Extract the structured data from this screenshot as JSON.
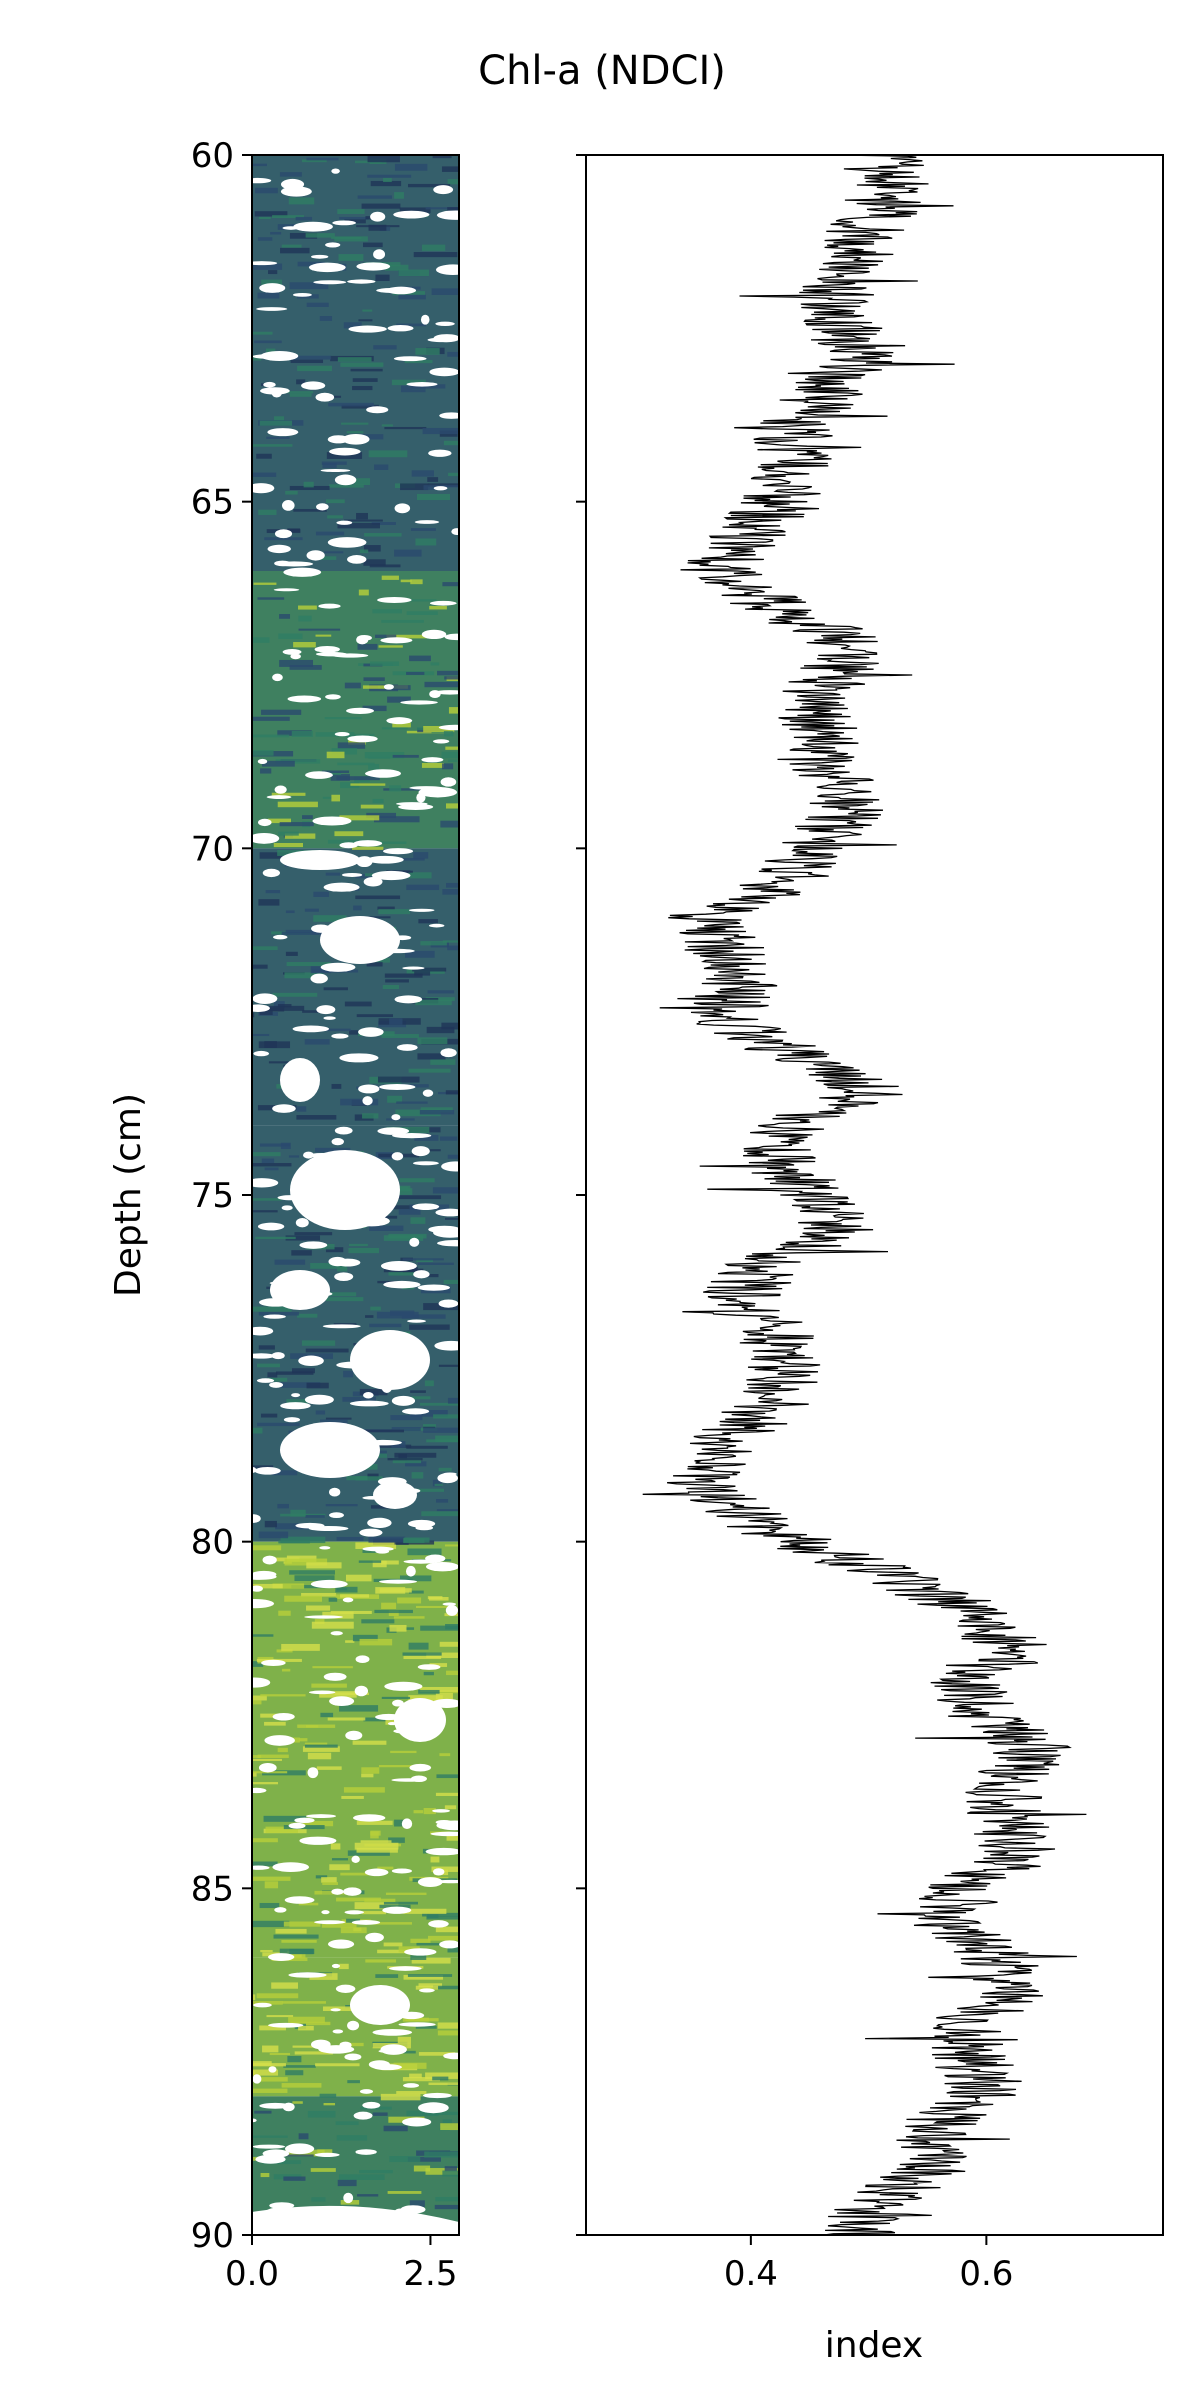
{
  "title": "Chl-a (NDCI)",
  "colors": {
    "background": "#ffffff",
    "profile_line": "#000000",
    "core_dark": "#2a4a6e",
    "core_mid": "#2f7d64",
    "core_light": "#b8cf3a",
    "core_void": "#ffffff"
  },
  "chart_data": [
    {
      "type": "heatmap",
      "panel": "left",
      "description_series": "core image colored by NDCI (viridis-like)",
      "xlabel": "",
      "ylabel": "Depth (cm)",
      "xlim": [
        0,
        2.9
      ],
      "ylim": [
        90,
        60
      ],
      "y_inverted": true,
      "x_ticks": [
        0.0,
        2.5
      ],
      "x_tick_labels": [
        "0.0",
        "2.5"
      ],
      "y_ticks": [
        60,
        65,
        70,
        75,
        80,
        85,
        90
      ],
      "y_tick_labels": [
        "60",
        "65",
        "70",
        "75",
        "80",
        "85",
        "90"
      ],
      "grid": false,
      "bands": [
        {
          "from": 60,
          "to": 66,
          "tone": "dark"
        },
        {
          "from": 66,
          "to": 70,
          "tone": "mid"
        },
        {
          "from": 70,
          "to": 74,
          "tone": "dark"
        },
        {
          "from": 74,
          "to": 80,
          "tone": "dark"
        },
        {
          "from": 80,
          "to": 86,
          "tone": "light"
        },
        {
          "from": 86,
          "to": 88,
          "tone": "light"
        },
        {
          "from": 88,
          "to": 90,
          "tone": "mid"
        }
      ]
    },
    {
      "type": "line",
      "panel": "right",
      "xlabel": "index",
      "ylabel": "",
      "xlim": [
        0.26,
        0.75
      ],
      "ylim": [
        90,
        60
      ],
      "y_inverted": true,
      "x_ticks": [
        0.4,
        0.6
      ],
      "x_tick_labels": [
        "0.4",
        "0.6"
      ],
      "y_ticks": [
        60,
        65,
        70,
        75,
        80,
        85,
        90
      ],
      "grid": false,
      "series": [
        {
          "depth": [
            60,
            60.5,
            61,
            61.5,
            62,
            62.5,
            63,
            63.5,
            64,
            64.5,
            65,
            65.5,
            66,
            66.5,
            67,
            67.5,
            68,
            68.5,
            69,
            69.5,
            70,
            70.5,
            71,
            71.5,
            72,
            72.5,
            73,
            73.5,
            74,
            74.5,
            75,
            75.5,
            76,
            76.5,
            77,
            77.5,
            78,
            78.5,
            79,
            79.5,
            80,
            80.5,
            81,
            81.5,
            82,
            82.5,
            83,
            83.5,
            84,
            84.5,
            85,
            85.5,
            86,
            86.5,
            87,
            87.5,
            88,
            88.5,
            89,
            89.5,
            90
          ],
          "value": [
            0.51,
            0.52,
            0.5,
            0.49,
            0.47,
            0.48,
            0.49,
            0.46,
            0.43,
            0.44,
            0.42,
            0.4,
            0.37,
            0.42,
            0.48,
            0.47,
            0.45,
            0.46,
            0.47,
            0.48,
            0.45,
            0.43,
            0.36,
            0.38,
            0.39,
            0.38,
            0.44,
            0.5,
            0.43,
            0.42,
            0.45,
            0.47,
            0.41,
            0.39,
            0.42,
            0.43,
            0.42,
            0.38,
            0.36,
            0.38,
            0.44,
            0.52,
            0.59,
            0.62,
            0.58,
            0.6,
            0.64,
            0.61,
            0.62,
            0.63,
            0.58,
            0.57,
            0.61,
            0.62,
            0.58,
            0.59,
            0.6,
            0.55,
            0.56,
            0.51,
            0.49
          ]
        }
      ]
    }
  ]
}
